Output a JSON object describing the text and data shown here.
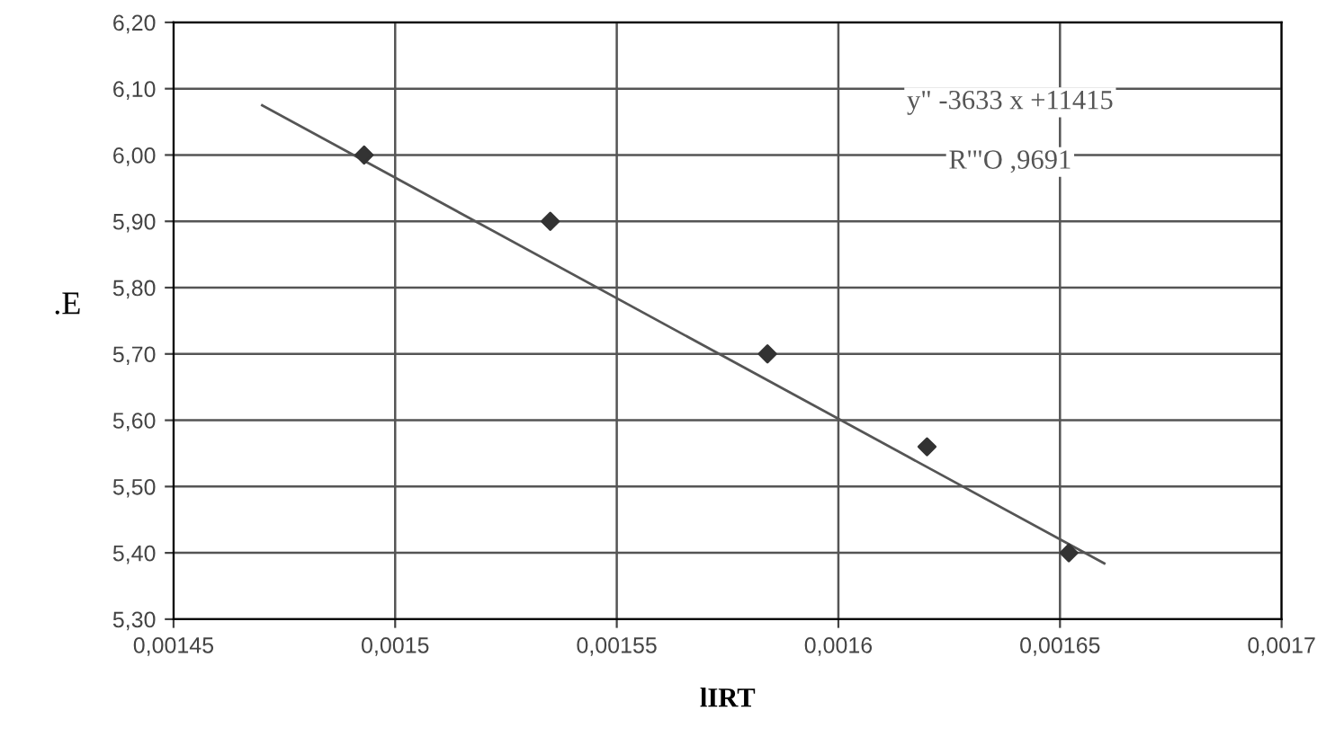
{
  "chart_data": {
    "type": "scatter",
    "xlabel": "lIRT",
    "ylabel": ".E",
    "marker": "diamond",
    "grid": true,
    "legend": false,
    "series": [
      {
        "color": "#333333",
        "x": [
          0.001493,
          0.001535,
          0.001584,
          0.00162,
          0.001652
        ],
        "values": [
          6.0,
          5.9,
          5.7,
          5.56,
          5.4
        ]
      },
      {
        "type": "line",
        "marker": "none",
        "color": "#555555",
        "x": [
          0.00147,
          0.00166
        ],
        "values": [
          6.075,
          5.384
        ]
      }
    ],
    "annotations": [
      {
        "text": "y\" -3633 x +11415"
      },
      {
        "text": "R'\"O ,9691"
      }
    ],
    "xlim": [
      0.00145,
      0.0017
    ],
    "xticks": [
      {
        "value": 0.00145,
        "label": "0,00145"
      },
      {
        "value": 0.0015,
        "label": "0,0015"
      },
      {
        "value": 0.00155,
        "label": "0,00155"
      },
      {
        "value": 0.0016,
        "label": "0,0016"
      },
      {
        "value": 0.00165,
        "label": "0,00165"
      },
      {
        "value": 0.0017,
        "label": "0,0017"
      }
    ],
    "ylim": [
      5.3,
      6.2
    ],
    "yticks": [
      {
        "value": 5.3,
        "label": "5,30"
      },
      {
        "value": 5.4,
        "label": "5,40"
      },
      {
        "value": 5.5,
        "label": "5,50"
      },
      {
        "value": 5.6,
        "label": "5,60"
      },
      {
        "value": 5.7,
        "label": "5,70"
      },
      {
        "value": 5.8,
        "label": "5,80"
      },
      {
        "value": 5.9,
        "label": "5,90"
      },
      {
        "value": 6.0,
        "label": "6,00"
      },
      {
        "value": 6.1,
        "label": "6,10"
      },
      {
        "value": 6.2,
        "label": "6,20"
      }
    ]
  }
}
